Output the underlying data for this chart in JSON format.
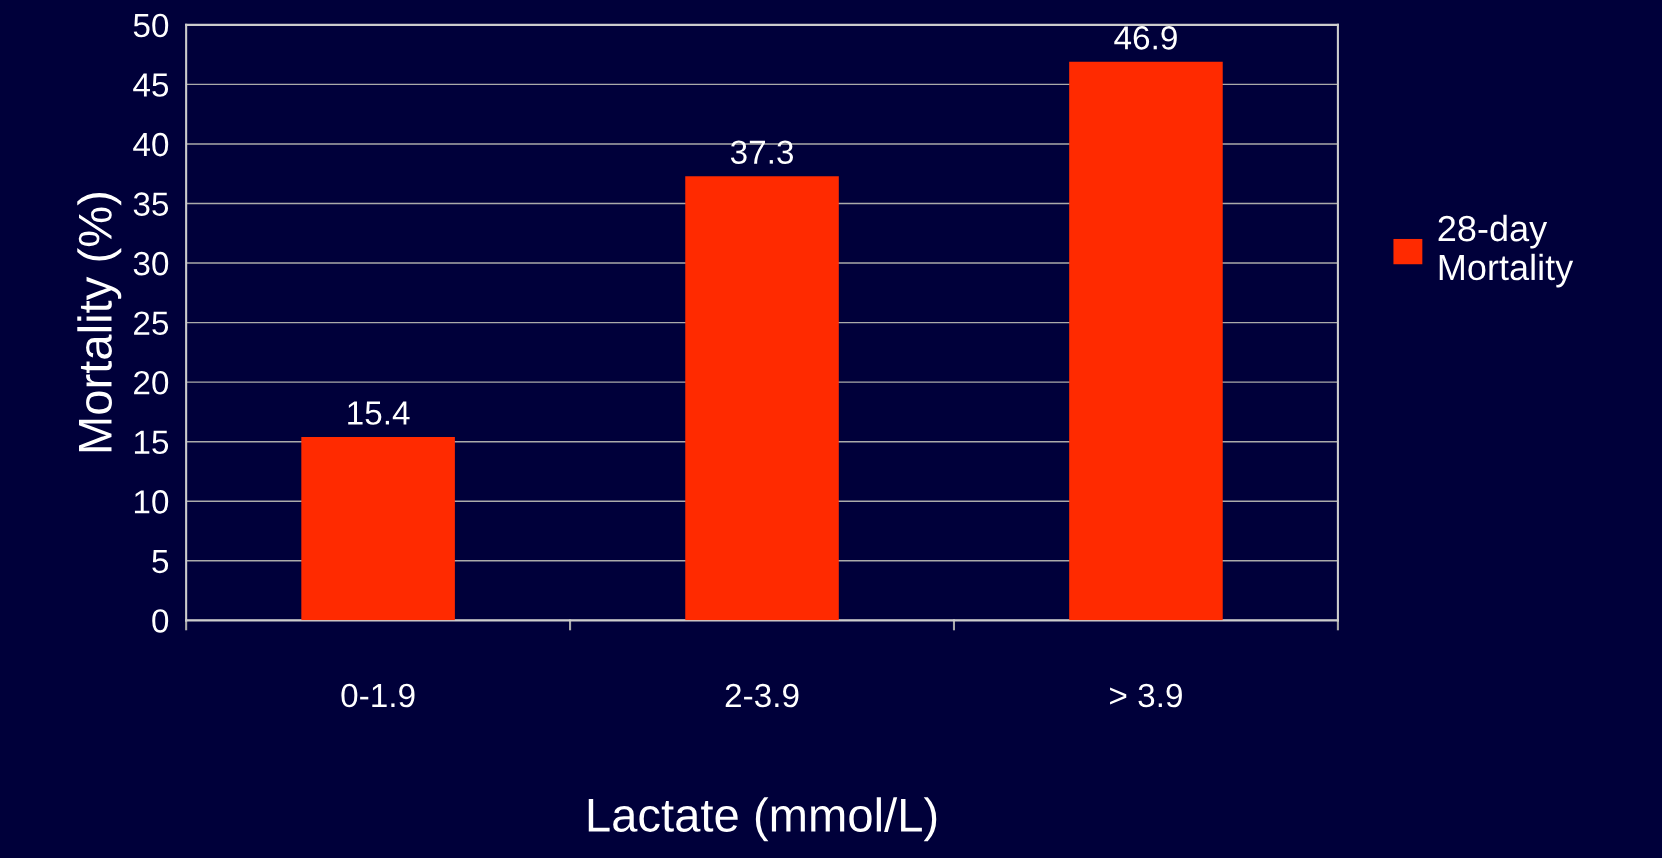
{
  "chart_data": {
    "type": "bar",
    "xlabel": "Lactate (mmol/L)",
    "ylabel": "Mortality (%)",
    "categories": [
      "0-1.9",
      "2-3.9",
      "> 3.9"
    ],
    "series": [
      {
        "name": "28-day\nMortality",
        "color": "#ff2a00",
        "values": [
          15.4,
          37.3,
          46.9
        ]
      }
    ],
    "ylim": [
      0,
      50
    ],
    "yticks": [
      0,
      5,
      10,
      15,
      20,
      25,
      30,
      35,
      40,
      45,
      50
    ],
    "grid": "y",
    "legend": "right",
    "data_labels": true
  }
}
